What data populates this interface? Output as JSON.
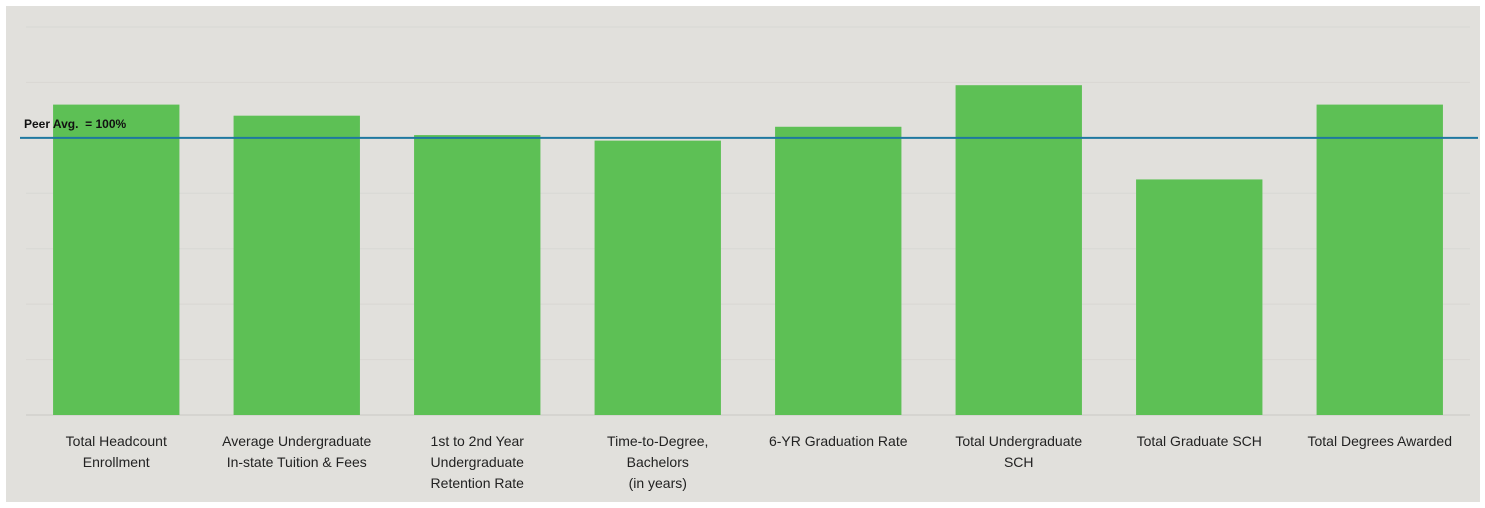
{
  "chart_data": {
    "type": "bar",
    "title": "",
    "xlabel": "",
    "ylabel": "",
    "categories": [
      [
        "Total Headcount",
        "Enrollment"
      ],
      [
        "Average Undergraduate",
        "In-state Tuition & Fees"
      ],
      [
        "1st to 2nd Year",
        "Undergraduate",
        "Retention Rate"
      ],
      [
        "Time-to-Degree,",
        "Bachelors",
        "(in years)"
      ],
      [
        "6-YR Graduation Rate"
      ],
      [
        "Total Undergraduate",
        "SCH"
      ],
      [
        "Total Graduate SCH"
      ],
      [
        "Total Degrees Awarded"
      ]
    ],
    "values": [
      112,
      108,
      101,
      99,
      104,
      119,
      85,
      112
    ],
    "ylim": [
      0,
      140
    ],
    "gridlines": [
      0,
      20,
      40,
      60,
      80,
      100,
      120,
      140
    ],
    "reference_line": {
      "value": 100,
      "label": "Peer Avg.  = 100%",
      "color": "#1f78a0"
    },
    "grid": true,
    "bar_color": "#5dc055",
    "background_color": "#e1e0dc"
  }
}
